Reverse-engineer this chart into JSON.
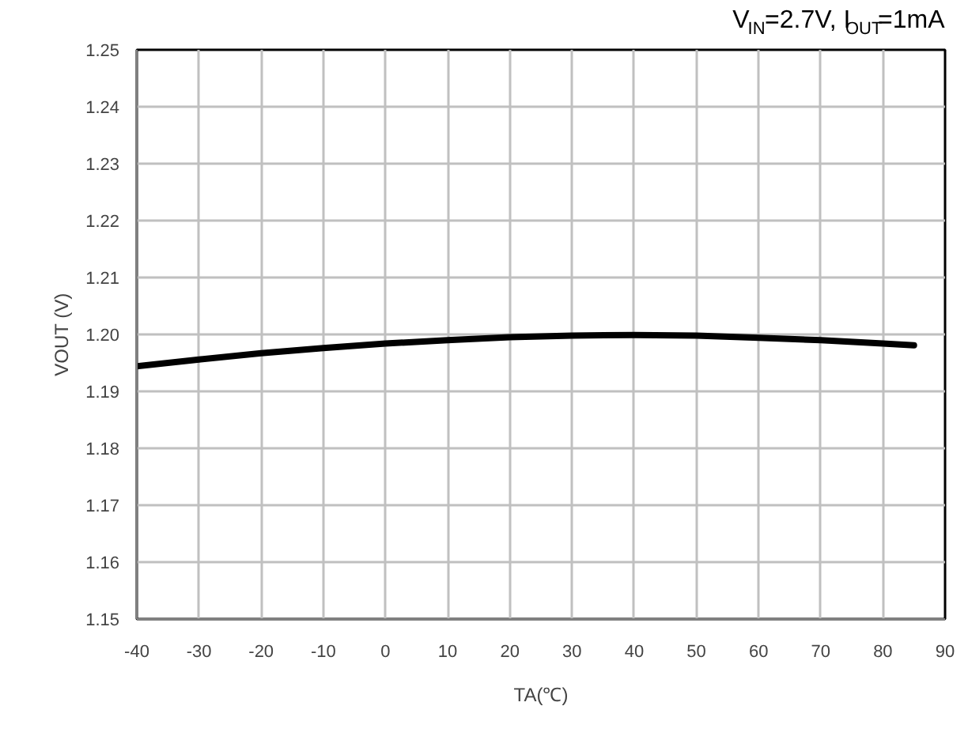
{
  "chart_data": {
    "type": "line",
    "title": "V$_{IN}$=2.7V, I$_{OUT}$=1mA",
    "xlabel": "TA(℃)",
    "ylabel": "VOUT (V)",
    "x": [
      -40,
      -30,
      -20,
      -10,
      0,
      10,
      20,
      30,
      40,
      50,
      60,
      70,
      80,
      85
    ],
    "series": [
      {
        "color": "#000000",
        "values": [
          1.1944,
          1.1956,
          1.1967,
          1.1976,
          1.1984,
          1.199,
          1.1995,
          1.1998,
          1.1999,
          1.1998,
          1.1994,
          1.199,
          1.1984,
          1.1981
        ]
      }
    ],
    "xlim": [
      -40,
      90
    ],
    "xticks": [
      -40,
      -30,
      -20,
      -10,
      0,
      10,
      20,
      30,
      40,
      50,
      60,
      70,
      80,
      90
    ],
    "ylim": [
      1.15,
      1.25
    ],
    "yticks": [
      {
        "value": 1.15,
        "label": "1.15"
      },
      {
        "value": 1.16,
        "label": "1.16"
      },
      {
        "value": 1.17,
        "label": "1.17"
      },
      {
        "value": 1.18,
        "label": "1.18"
      },
      {
        "value": 1.19,
        "label": "1.19"
      },
      {
        "value": 1.2,
        "label": "1.20"
      },
      {
        "value": 1.21,
        "label": "1.21"
      },
      {
        "value": 1.22,
        "label": "1.22"
      },
      {
        "value": 1.23,
        "label": "1.23"
      },
      {
        "value": 1.24,
        "label": "1.24"
      },
      {
        "value": 1.25,
        "label": "1.25"
      }
    ],
    "grid": true,
    "line_style": "solid",
    "marker": "none"
  }
}
